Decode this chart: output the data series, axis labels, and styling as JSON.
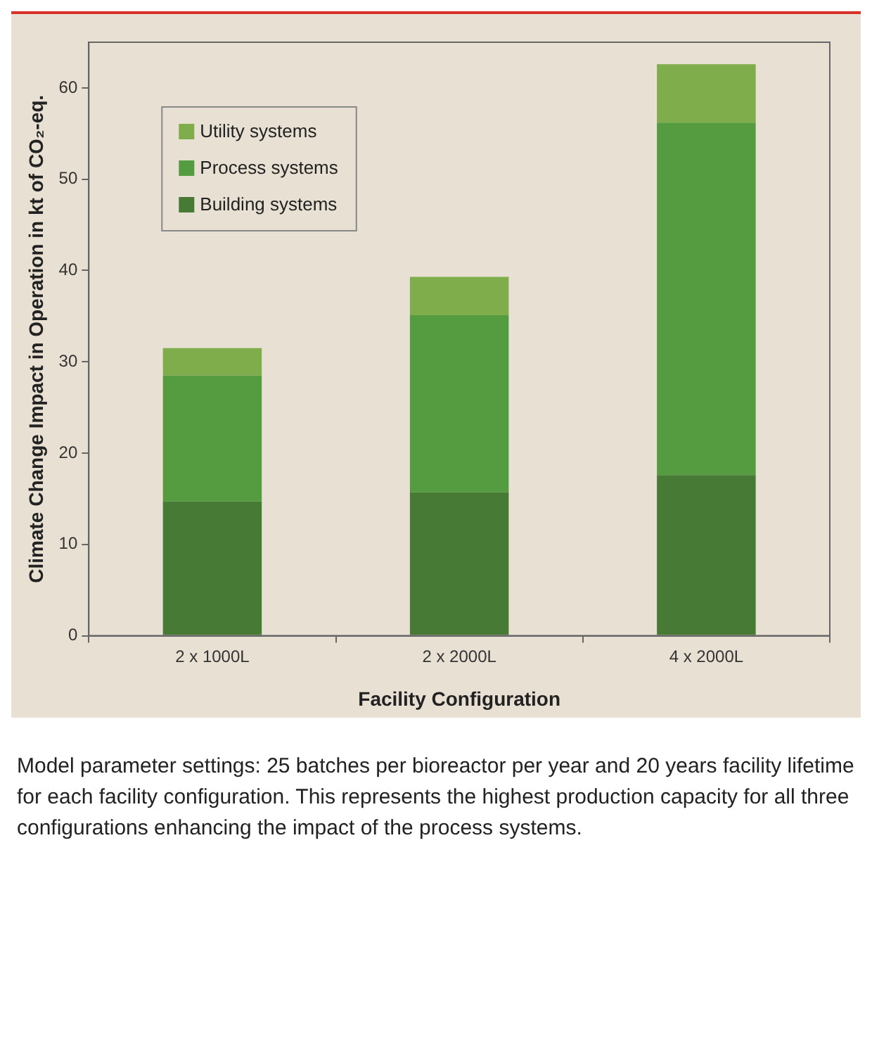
{
  "chart_data": {
    "type": "bar",
    "stacked": true,
    "xlabel": "Facility Configuration",
    "ylabel": "Climate Change Impact in Operation in kt of CO₂-eq.",
    "categories": [
      "2 x 1000L",
      "2 x 2000L",
      "4 x 2000L"
    ],
    "series": [
      {
        "name": "Building systems",
        "color": "#467a35",
        "values": [
          14.7,
          15.7,
          17.6
        ]
      },
      {
        "name": "Process systems",
        "color": "#559c40",
        "values": [
          13.8,
          19.4,
          38.6
        ]
      },
      {
        "name": "Utility systems",
        "color": "#80ad4c",
        "values": [
          3.0,
          4.2,
          6.4
        ]
      }
    ],
    "ylim": [
      0,
      65
    ],
    "yticks": [
      0,
      10,
      20,
      30,
      40,
      50,
      60
    ],
    "grid": false,
    "legend": "top left",
    "annotations": [
      "Model parameter settings: 25 batches per bioreactor per year and 20 years facility lifetime for each facility configuration. This represents the highest production capacity for all three configurations enhancing the impact of the process systems."
    ]
  }
}
